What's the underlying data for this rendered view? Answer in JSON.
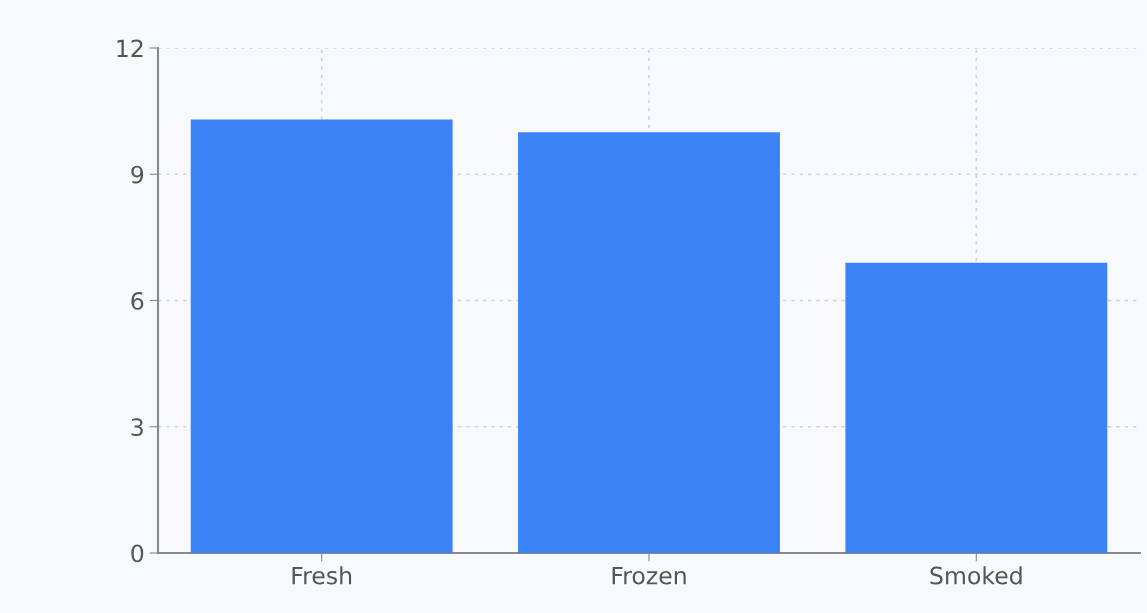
{
  "chart_data": {
    "type": "bar",
    "categories": [
      "Fresh",
      "Frozen",
      "Smoked"
    ],
    "values": [
      10.3,
      10.0,
      6.9
    ],
    "color": "#3b82f6",
    "ylim": [
      0,
      12
    ],
    "yticks": [
      0,
      3,
      6,
      9,
      12
    ],
    "grid": true
  }
}
